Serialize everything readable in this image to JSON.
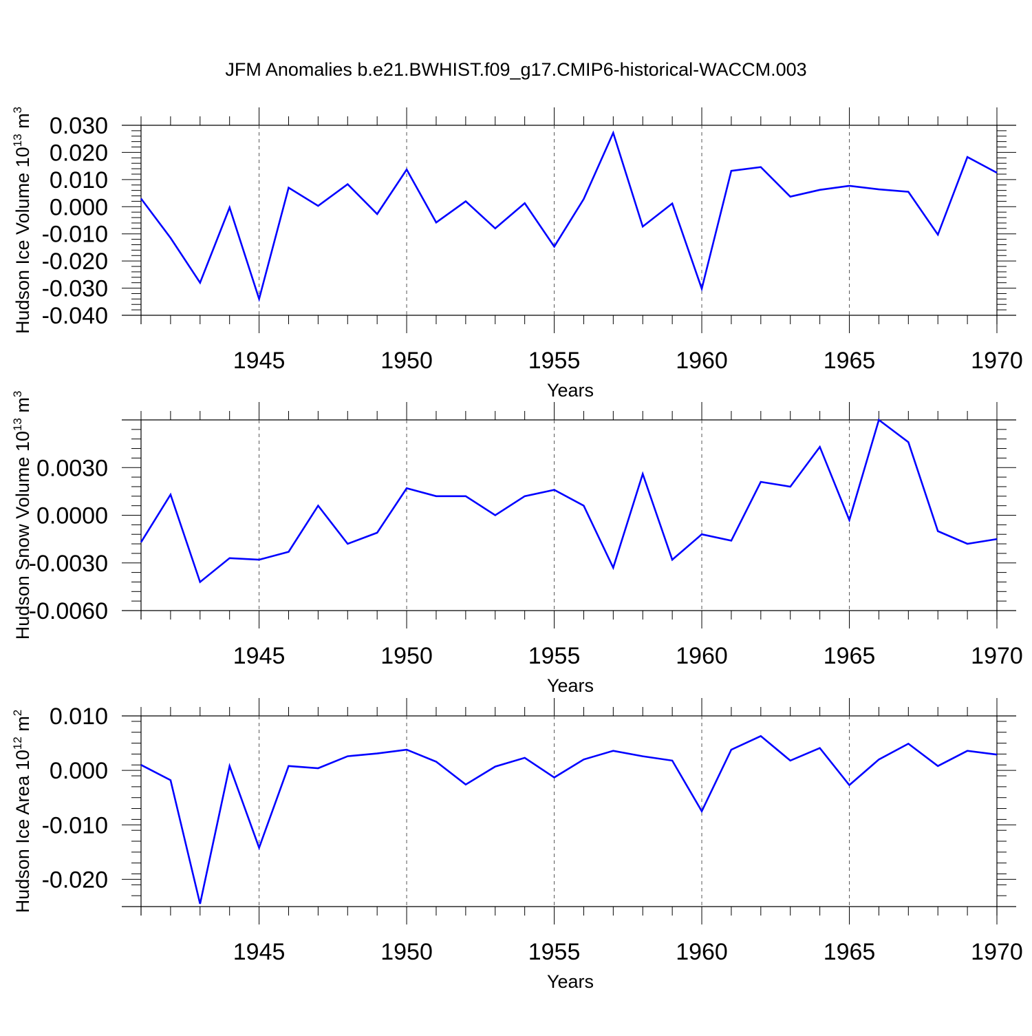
{
  "title": "JFM Anomalies b.e21.BWHIST.f09_g17.CMIP6-historical-WACCM.003",
  "colors": {
    "line": "#0000ff",
    "axis": "#000000",
    "grid": "#555555"
  },
  "chart_data": [
    {
      "type": "line",
      "title": "JFM Anomalies b.e21.BWHIST.f09_g17.CMIP6-historical-WACCM.003",
      "ylabel": "Hudson Ice Volume 10",
      "ylabel_exp": "13",
      "ylabel_unit": "m",
      "ylabel_unit_exp": "3",
      "xlabel": "Years",
      "xlim": [
        1941,
        1970
      ],
      "ylim": [
        -0.04,
        0.03
      ],
      "yticks": [
        {
          "v": 0.03,
          "label": "0.030"
        },
        {
          "v": 0.02,
          "label": "0.020"
        },
        {
          "v": 0.01,
          "label": "0.010"
        },
        {
          "v": 0.0,
          "label": "0.000"
        },
        {
          "v": -0.01,
          "label": "-0.010"
        },
        {
          "v": -0.02,
          "label": "-0.020"
        },
        {
          "v": -0.03,
          "label": "-0.030"
        },
        {
          "v": -0.04,
          "label": "-0.040"
        }
      ],
      "xticks": [
        1945,
        1950,
        1955,
        1960,
        1965,
        1970
      ],
      "grid": "vertical dashed at major x ticks",
      "x": [
        1941,
        1942,
        1943,
        1944,
        1945,
        1946,
        1947,
        1948,
        1949,
        1950,
        1951,
        1952,
        1953,
        1954,
        1955,
        1956,
        1957,
        1958,
        1959,
        1960,
        1961,
        1962,
        1963,
        1964,
        1965,
        1966,
        1967,
        1968,
        1969,
        1970
      ],
      "series": [
        {
          "values": [
            0.003,
            -0.0115,
            -0.028,
            -0.0003,
            -0.034,
            0.007,
            0.0003,
            0.0083,
            -0.0027,
            0.0137,
            -0.0058,
            0.002,
            -0.008,
            0.0013,
            -0.0147,
            0.0028,
            0.0272,
            -0.0073,
            0.0012,
            -0.0302,
            0.0132,
            0.0146,
            0.0037,
            0.0062,
            0.0077,
            0.0064,
            0.0055,
            -0.0103,
            0.0183,
            0.0125
          ]
        }
      ]
    },
    {
      "type": "line",
      "ylabel": "Hudson Snow Volume 10",
      "ylabel_exp": "13",
      "ylabel_unit": "m",
      "ylabel_unit_exp": "3",
      "xlabel": "Years",
      "xlim": [
        1941,
        1970
      ],
      "ylim": [
        -0.006,
        0.006
      ],
      "yticks": [
        {
          "v": 0.003,
          "label": "0.0030"
        },
        {
          "v": 0.0,
          "label": "0.0000"
        },
        {
          "v": -0.003,
          "label": "-0.0030"
        },
        {
          "v": -0.006,
          "label": "-0.0060"
        }
      ],
      "xticks": [
        1945,
        1950,
        1955,
        1960,
        1965,
        1970
      ],
      "grid": "vertical dashed at major x ticks",
      "x": [
        1941,
        1942,
        1943,
        1944,
        1945,
        1946,
        1947,
        1948,
        1949,
        1950,
        1951,
        1952,
        1953,
        1954,
        1955,
        1956,
        1957,
        1958,
        1959,
        1960,
        1961,
        1962,
        1963,
        1964,
        1965,
        1966,
        1967,
        1968,
        1969,
        1970
      ],
      "series": [
        {
          "values": [
            -0.0017,
            0.0013,
            -0.0042,
            -0.0027,
            -0.0028,
            -0.0023,
            0.0006,
            -0.0018,
            -0.0011,
            0.0017,
            0.0012,
            0.0012,
            0.0,
            0.0012,
            0.0016,
            0.0006,
            -0.0033,
            0.0026,
            -0.0028,
            -0.0012,
            -0.0016,
            0.0021,
            0.0018,
            0.0043,
            -0.0003,
            0.006,
            0.0046,
            -0.001,
            -0.0018,
            -0.0015
          ]
        }
      ]
    },
    {
      "type": "line",
      "ylabel": "Hudson Ice Area 10",
      "ylabel_exp": "12",
      "ylabel_unit": "m",
      "ylabel_unit_exp": "2",
      "xlabel": "Years",
      "xlim": [
        1941,
        1970
      ],
      "ylim": [
        -0.025,
        0.01
      ],
      "yticks": [
        {
          "v": 0.01,
          "label": "0.010"
        },
        {
          "v": 0.0,
          "label": "0.000"
        },
        {
          "v": -0.01,
          "label": "-0.010"
        },
        {
          "v": -0.02,
          "label": "-0.020"
        }
      ],
      "xticks": [
        1945,
        1950,
        1955,
        1960,
        1965,
        1970
      ],
      "grid": "vertical dashed at major x ticks",
      "x": [
        1941,
        1942,
        1943,
        1944,
        1945,
        1946,
        1947,
        1948,
        1949,
        1950,
        1951,
        1952,
        1953,
        1954,
        1955,
        1956,
        1957,
        1958,
        1959,
        1960,
        1961,
        1962,
        1963,
        1964,
        1965,
        1966,
        1967,
        1968,
        1969,
        1970
      ],
      "series": [
        {
          "values": [
            0.001,
            -0.0018,
            -0.0245,
            0.0008,
            -0.0142,
            0.0008,
            0.0004,
            0.0026,
            0.0031,
            0.0038,
            0.0016,
            -0.0026,
            0.0007,
            0.0023,
            -0.0013,
            0.002,
            0.0036,
            0.0026,
            0.0018,
            -0.0075,
            0.0038,
            0.0063,
            0.0018,
            0.0041,
            -0.0027,
            0.002,
            0.0049,
            0.0008,
            0.0036,
            0.0029
          ]
        }
      ]
    }
  ]
}
